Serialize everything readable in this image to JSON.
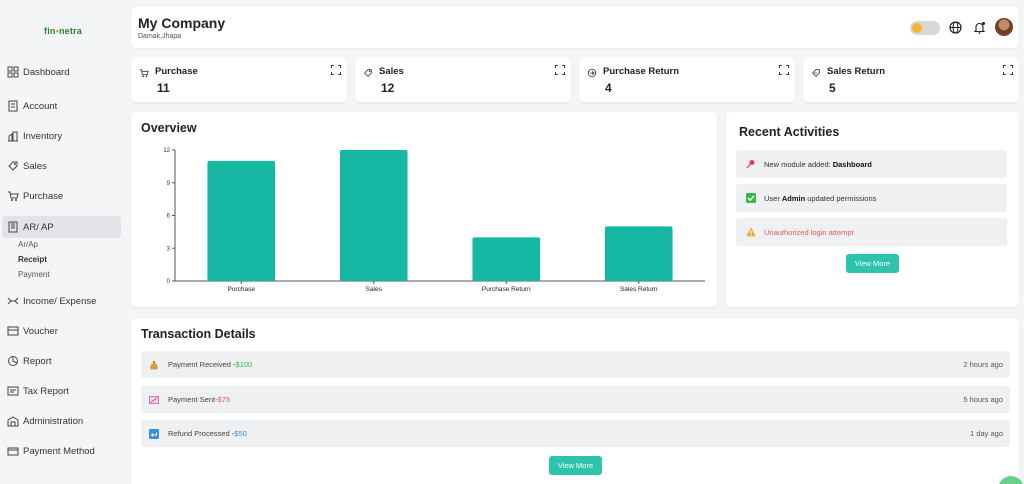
{
  "brand": {
    "logo_text_a": "fin",
    "logo_text_b": "netra"
  },
  "sidebar": {
    "items": [
      {
        "label": "Dashboard",
        "icon": "dashboard-icon"
      },
      {
        "label": "Account",
        "icon": "account-icon"
      },
      {
        "label": "Inventory",
        "icon": "inventory-icon"
      },
      {
        "label": "Sales",
        "icon": "sales-icon"
      },
      {
        "label": "Purchase",
        "icon": "cart-icon"
      },
      {
        "label": "AR/ AP",
        "icon": "ledger-icon",
        "active": true
      },
      {
        "label": "Income/ Expense",
        "icon": "income-expense-icon"
      },
      {
        "label": "Voucher",
        "icon": "voucher-icon"
      },
      {
        "label": "Report",
        "icon": "report-icon"
      },
      {
        "label": "Tax Report",
        "icon": "tax-report-icon"
      },
      {
        "label": "Administration",
        "icon": "administration-icon"
      },
      {
        "label": "Payment Method",
        "icon": "payment-method-icon"
      }
    ],
    "subitems": [
      {
        "label": "Ar/Ap"
      },
      {
        "label": "Receipt",
        "active": true
      },
      {
        "label": "Payment"
      }
    ]
  },
  "header": {
    "company": "My Company",
    "location": "Damak,Jhapa",
    "icons": [
      "theme-toggle-icon",
      "globe-icon",
      "bell-icon",
      "avatar"
    ]
  },
  "stats": [
    {
      "label": "Purchase",
      "value": "11",
      "icon": "cart-icon"
    },
    {
      "label": "Sales",
      "value": "12",
      "icon": "sales-icon"
    },
    {
      "label": "Purchase Return",
      "value": "4",
      "icon": "purchase-return-icon"
    },
    {
      "label": "Sales Return",
      "value": "5",
      "icon": "sales-return-icon"
    }
  ],
  "overview": {
    "title": "Overview",
    "chart_data": {
      "type": "bar",
      "categories": [
        "Purchase",
        "Sales",
        "Purchase Return",
        "Sales Return"
      ],
      "values": [
        11,
        12,
        4,
        5
      ],
      "ylim": [
        0,
        12
      ],
      "yticks": [
        0,
        3,
        6,
        9,
        12
      ],
      "color": "#16b8a4",
      "grid": false
    }
  },
  "activities": {
    "title": "Recent Activities",
    "items": [
      {
        "prefix": "New module added:",
        "bold": "Dashboard",
        "suffix": "",
        "icon": "pin-icon"
      },
      {
        "prefix": "User",
        "bold": "Admin",
        "suffix": "updated permissions",
        "icon": "check-icon"
      },
      {
        "prefix": "Unauthorized login attempt",
        "bold": "",
        "suffix": "",
        "icon": "warning-icon"
      }
    ],
    "view_more": "View More"
  },
  "transactions": {
    "title": "Transaction Details",
    "items": [
      {
        "label": "Payment Received - ",
        "amount": "$100",
        "time": "2 hours ago",
        "icon": "money-bag-icon"
      },
      {
        "label": "Payment Sent- ",
        "amount": "$75",
        "time": "5 hours ago",
        "icon": "money-sent-icon"
      },
      {
        "label": "Refund Processed - ",
        "amount": "$50",
        "time": "1 day ago",
        "icon": "refund-icon"
      }
    ],
    "view_more": "View More"
  },
  "colors": {
    "accent": "#2ec4ac",
    "bar": "#16b8a4",
    "green": "#2fbf4a",
    "red": "#e65b4b",
    "blue": "#3b8fd9"
  }
}
